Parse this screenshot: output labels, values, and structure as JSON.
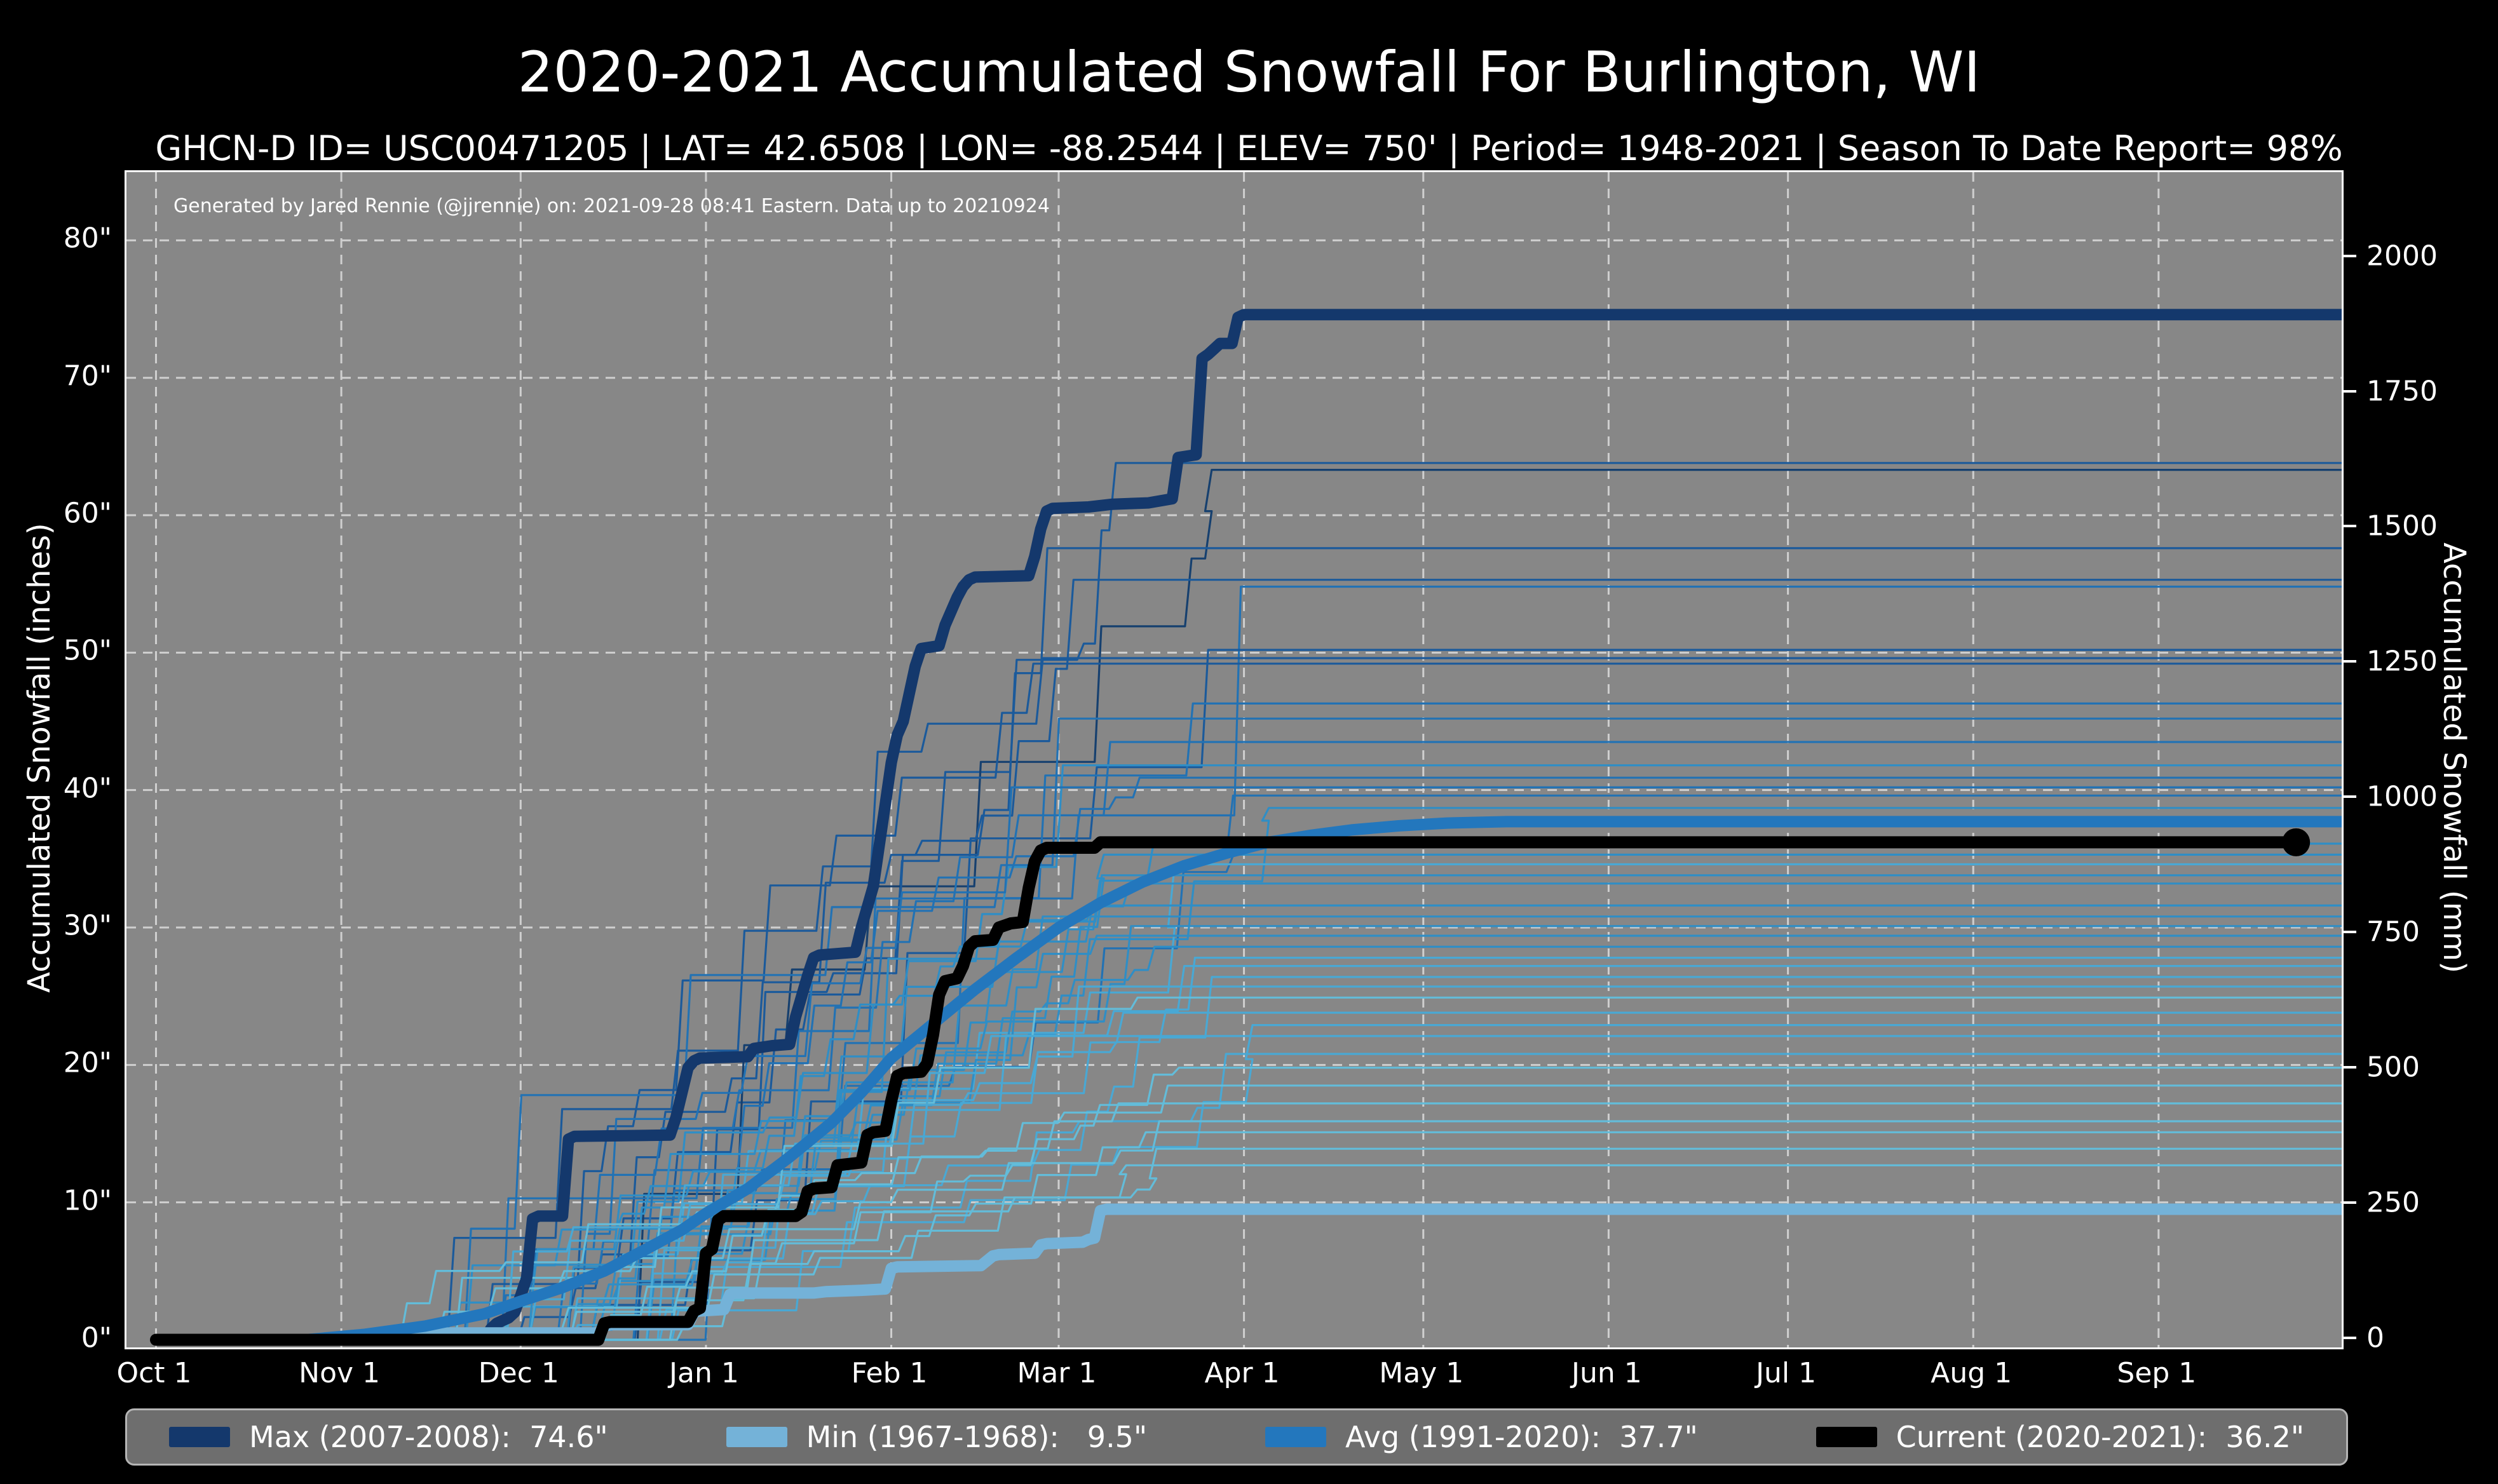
{
  "title": "2020-2021 Accumulated Snowfall For Burlington, WI",
  "subtitle": "GHCN-D ID= USC00471205 | LAT= 42.6508 | LON= -88.2544 | ELEV= 750' | Period= 1948-2021 | Season To Date Report= 98%",
  "annotation": "Generated by Jared Rennie (@jjrennie) on: 2021-09-28 08:41 Eastern. Data up to 20210924",
  "axes": {
    "left": {
      "label": "Accumulated Snowfall (inches)",
      "ticks": [
        {
          "value": 0,
          "label": "0\""
        },
        {
          "value": 10,
          "label": "10\""
        },
        {
          "value": 20,
          "label": "20\""
        },
        {
          "value": 30,
          "label": "30\""
        },
        {
          "value": 40,
          "label": "40\""
        },
        {
          "value": 50,
          "label": "50\""
        },
        {
          "value": 60,
          "label": "60\""
        },
        {
          "value": 70,
          "label": "70\""
        },
        {
          "value": 80,
          "label": "80\""
        }
      ]
    },
    "right": {
      "label": "Accumulated Snowfall (mm)",
      "ticks": [
        {
          "value": 0,
          "label": "0"
        },
        {
          "value": 250,
          "label": "250"
        },
        {
          "value": 500,
          "label": "500"
        },
        {
          "value": 750,
          "label": "750"
        },
        {
          "value": 1000,
          "label": "1000"
        },
        {
          "value": 1250,
          "label": "1250"
        },
        {
          "value": 1500,
          "label": "1500"
        },
        {
          "value": 1750,
          "label": "1750"
        },
        {
          "value": 2000,
          "label": "2000"
        }
      ]
    },
    "x": {
      "ticks": [
        {
          "day": 0,
          "label": "Oct 1"
        },
        {
          "day": 31,
          "label": "Nov 1"
        },
        {
          "day": 61,
          "label": "Dec 1"
        },
        {
          "day": 92,
          "label": "Jan 1"
        },
        {
          "day": 123,
          "label": "Feb 1"
        },
        {
          "day": 151,
          "label": "Mar 1"
        },
        {
          "day": 182,
          "label": "Apr 1"
        },
        {
          "day": 212,
          "label": "May 1"
        },
        {
          "day": 243,
          "label": "Jun 1"
        },
        {
          "day": 273,
          "label": "Jul 1"
        },
        {
          "day": 304,
          "label": "Aug 1"
        },
        {
          "day": 335,
          "label": "Sep 1"
        }
      ]
    }
  },
  "legend": {
    "items": [
      {
        "id": "max",
        "label": "Max (2007-2008):  74.6\"",
        "color": "#14386c"
      },
      {
        "id": "min",
        "label": "Min (1967-1968):   9.5\"",
        "color": "#74b2d8"
      },
      {
        "id": "avg",
        "label": "Avg (1991-2020):  37.7\"",
        "color": "#2377bd"
      },
      {
        "id": "current",
        "label": "Current (2020-2021):  36.2\"",
        "color": "#000000"
      }
    ]
  },
  "colors": {
    "background": "#000000",
    "plot_background": "#878787",
    "grid": "#cfcfcf",
    "spine": "#ffffff",
    "text": "#ffffff",
    "legend_background": "#6e6e6e",
    "legend_border": "#b5b5b5",
    "max_line": "#14386c",
    "min_line": "#74b2d8",
    "avg_line": "#2377bd",
    "current_line": "#000000",
    "season_palette": [
      "#63bcd9",
      "#49a8d4",
      "#2f8ec6",
      "#2272b4",
      "#1b5a9b",
      "#16406f"
    ]
  },
  "chart_data": {
    "type": "line",
    "title": "2020-2021 Accumulated Snowfall For Burlington, WI",
    "x_unit": "days_since_oct_1",
    "y_unit": "inches",
    "ylim": [
      0,
      85
    ],
    "xticks_days": [
      0,
      31,
      61,
      92,
      123,
      151,
      182,
      212,
      243,
      273,
      304,
      335
    ],
    "grid": "dashed, both axes, 10-inch and month intervals",
    "legend_position": "bottom bar",
    "series": [
      {
        "name": "Max (2007-2008)",
        "total_inches": 74.6,
        "points": [
          [
            0,
            0
          ],
          [
            55,
            0
          ],
          [
            56,
            0.8
          ],
          [
            57,
            1.2
          ],
          [
            59,
            1.6
          ],
          [
            60,
            2.0
          ],
          [
            61,
            3.2
          ],
          [
            62,
            4.5
          ],
          [
            63,
            8.8
          ],
          [
            64,
            9.0
          ],
          [
            68,
            9.0
          ],
          [
            69,
            14.6
          ],
          [
            70,
            14.8
          ],
          [
            86,
            14.9
          ],
          [
            87,
            16.2
          ],
          [
            88,
            18.0
          ],
          [
            89,
            19.8
          ],
          [
            90,
            20.3
          ],
          [
            91,
            20.5
          ],
          [
            99,
            20.6
          ],
          [
            100,
            21.2
          ],
          [
            103,
            21.4
          ],
          [
            106,
            21.5
          ],
          [
            107,
            23.5
          ],
          [
            108,
            25.0
          ],
          [
            109,
            26.5
          ],
          [
            110,
            27.8
          ],
          [
            111,
            28.0
          ],
          [
            117,
            28.2
          ],
          [
            118,
            30.0
          ],
          [
            119,
            31.5
          ],
          [
            120,
            33.0
          ],
          [
            121,
            36.0
          ],
          [
            122,
            39.0
          ],
          [
            123,
            42.0
          ],
          [
            124,
            44.0
          ],
          [
            125,
            45.0
          ],
          [
            126,
            47.0
          ],
          [
            127,
            49.0
          ],
          [
            128,
            50.3
          ],
          [
            131,
            50.5
          ],
          [
            132,
            52.0
          ],
          [
            133,
            53.0
          ],
          [
            134,
            54.0
          ],
          [
            135,
            54.8
          ],
          [
            136,
            55.3
          ],
          [
            137,
            55.5
          ],
          [
            146,
            55.6
          ],
          [
            147,
            57.0
          ],
          [
            148,
            59.0
          ],
          [
            149,
            60.3
          ],
          [
            150,
            60.5
          ],
          [
            156,
            60.6
          ],
          [
            160,
            60.8
          ],
          [
            166,
            60.9
          ],
          [
            170,
            61.2
          ],
          [
            171,
            64.2
          ],
          [
            174,
            64.4
          ],
          [
            175,
            71.4
          ],
          [
            176,
            71.7
          ],
          [
            177,
            72.1
          ],
          [
            178,
            72.5
          ],
          [
            180,
            72.5
          ],
          [
            181,
            74.4
          ],
          [
            182,
            74.6
          ],
          [
            366,
            74.6
          ]
        ]
      },
      {
        "name": "Min (1967-1968)",
        "total_inches": 9.5,
        "points": [
          [
            0,
            0
          ],
          [
            40,
            0
          ],
          [
            41,
            0.4
          ],
          [
            48,
            0.5
          ],
          [
            74,
            0.5
          ],
          [
            75,
            1.0
          ],
          [
            76,
            1.1
          ],
          [
            89,
            1.1
          ],
          [
            90,
            2.0
          ],
          [
            91,
            2.1
          ],
          [
            95,
            2.2
          ],
          [
            96,
            3.3
          ],
          [
            97,
            3.4
          ],
          [
            110,
            3.4
          ],
          [
            112,
            3.5
          ],
          [
            118,
            3.6
          ],
          [
            122,
            3.7
          ],
          [
            123,
            5.2
          ],
          [
            124,
            5.3
          ],
          [
            138,
            5.4
          ],
          [
            140,
            6.1
          ],
          [
            141,
            6.2
          ],
          [
            147,
            6.3
          ],
          [
            148,
            6.9
          ],
          [
            149,
            7.0
          ],
          [
            155,
            7.1
          ],
          [
            156,
            7.3
          ],
          [
            157,
            7.4
          ],
          [
            158,
            9.4
          ],
          [
            159,
            9.5
          ],
          [
            366,
            9.5
          ]
        ]
      },
      {
        "name": "Avg (1991-2020)",
        "total_inches": 37.7,
        "points": [
          [
            25,
            0
          ],
          [
            35,
            0.4
          ],
          [
            45,
            1.0
          ],
          [
            55,
            1.9
          ],
          [
            61,
            2.8
          ],
          [
            68,
            3.8
          ],
          [
            75,
            5.0
          ],
          [
            82,
            6.6
          ],
          [
            88,
            8.0
          ],
          [
            92,
            9.2
          ],
          [
            99,
            11.0
          ],
          [
            106,
            13.3
          ],
          [
            113,
            15.8
          ],
          [
            118,
            18.0
          ],
          [
            123,
            20.5
          ],
          [
            130,
            23.0
          ],
          [
            137,
            25.5
          ],
          [
            144,
            27.8
          ],
          [
            151,
            30.0
          ],
          [
            158,
            31.8
          ],
          [
            165,
            33.3
          ],
          [
            172,
            34.5
          ],
          [
            179,
            35.4
          ],
          [
            186,
            36.2
          ],
          [
            193,
            36.7
          ],
          [
            200,
            37.1
          ],
          [
            208,
            37.4
          ],
          [
            216,
            37.6
          ],
          [
            226,
            37.7
          ],
          [
            366,
            37.7
          ]
        ]
      },
      {
        "name": "Current (2020-2021)",
        "total_inches": 36.2,
        "end_day": 358,
        "end_marker": "dot",
        "points": [
          [
            0,
            0
          ],
          [
            74,
            0
          ],
          [
            75,
            1.2
          ],
          [
            76,
            1.3
          ],
          [
            89,
            1.3
          ],
          [
            90,
            2.1
          ],
          [
            91,
            2.3
          ],
          [
            92,
            6.3
          ],
          [
            93,
            6.6
          ],
          [
            94,
            8.7
          ],
          [
            95,
            9.0
          ],
          [
            107,
            9.0
          ],
          [
            108,
            9.3
          ],
          [
            109,
            10.8
          ],
          [
            110,
            11.0
          ],
          [
            113,
            11.1
          ],
          [
            114,
            12.7
          ],
          [
            118,
            12.9
          ],
          [
            119,
            14.9
          ],
          [
            120,
            15.1
          ],
          [
            122,
            15.2
          ],
          [
            123,
            17.4
          ],
          [
            124,
            19.2
          ],
          [
            125,
            19.4
          ],
          [
            128,
            19.5
          ],
          [
            129,
            20.1
          ],
          [
            130,
            22.2
          ],
          [
            131,
            25.1
          ],
          [
            132,
            26.1
          ],
          [
            134,
            26.3
          ],
          [
            135,
            27.2
          ],
          [
            136,
            28.6
          ],
          [
            137,
            29.0
          ],
          [
            140,
            29.1
          ],
          [
            141,
            30.0
          ],
          [
            143,
            30.3
          ],
          [
            145,
            30.4
          ],
          [
            146,
            32.9
          ],
          [
            147,
            34.8
          ],
          [
            148,
            35.6
          ],
          [
            149,
            35.8
          ],
          [
            157,
            35.8
          ],
          [
            158,
            36.2
          ],
          [
            358,
            36.2
          ]
        ]
      }
    ],
    "background_seasons": {
      "description": "thin step traces of individual seasons 1948-2021, final totals read at right edge",
      "final_totals_inches": [
        63.8,
        63.3,
        57.6,
        55.3,
        54.8,
        50.2,
        49.6,
        49.2,
        46.3,
        45.2,
        43.5,
        41.8,
        40.9,
        40.2,
        39.6,
        38.7,
        36.1,
        35.3,
        34.6,
        33.8,
        33.2,
        31.6,
        30.8,
        30.1,
        29.4,
        28.6,
        27.8,
        27.2,
        26.4,
        25.7,
        24.9,
        23.8,
        22.9,
        22.1,
        20.8,
        19.8,
        18.5,
        17.2,
        15.9,
        15.1,
        13.9,
        12.7
      ]
    }
  }
}
